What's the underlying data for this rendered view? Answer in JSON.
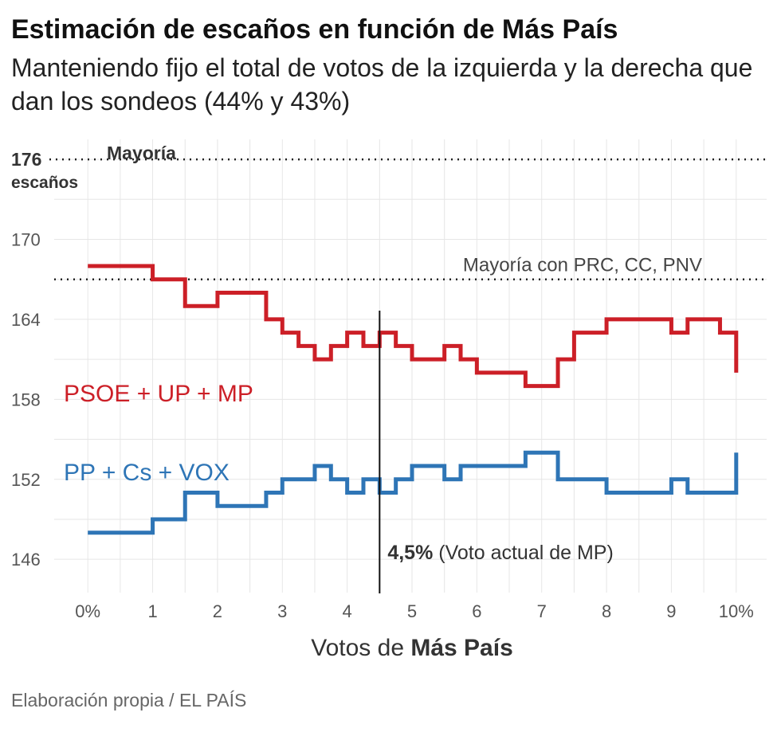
{
  "title": "Estimación de escaños en función de Más País",
  "subtitle": "Manteniendo fijo el total de votos de la izquierda y la derecha que dan los sondeos (44% y 43%)",
  "source": "Elaboración propia / EL PAÍS",
  "chart_data": {
    "type": "line",
    "step": true,
    "title": "Estimación de escaños en función de Más País",
    "xlabel": "Votos de Más País",
    "xlabel_parts": [
      "Votos de ",
      "Más País"
    ],
    "ylabel": "",
    "xlim": [
      -0.15,
      10.15
    ],
    "ylim": [
      143.5,
      177.5
    ],
    "x_ticks": [
      0,
      1,
      2,
      3,
      4,
      5,
      6,
      7,
      8,
      9,
      10
    ],
    "x_tick_labels": [
      "0%",
      "1",
      "2",
      "3",
      "4",
      "5",
      "6",
      "7",
      "8",
      "9",
      "10%"
    ],
    "y_ticks": [
      146,
      152,
      158,
      164,
      170
    ],
    "y_tick_labels": [
      "146",
      "152",
      "158",
      "164",
      "170"
    ],
    "grid": true,
    "reference_lines": [
      {
        "y": 176,
        "label_top": "Mayoría",
        "label_value": "176",
        "label_unit": "escaños",
        "style": "dotted"
      },
      {
        "y": 167,
        "label": "Mayoría con PRC, CC, PNV",
        "style": "dotted"
      }
    ],
    "vertical_marker": {
      "x": 4.5,
      "label_bold": "4,5%",
      "label_rest": " (Voto actual de MP)"
    },
    "series": [
      {
        "name": "PSOE + UP + MP",
        "color": "#cc1f27",
        "steps": [
          {
            "x": 0,
            "y": 168
          },
          {
            "x": 1,
            "y": 167
          },
          {
            "x": 1.5,
            "y": 165
          },
          {
            "x": 2,
            "y": 166
          },
          {
            "x": 2.75,
            "y": 164
          },
          {
            "x": 3,
            "y": 163
          },
          {
            "x": 3.25,
            "y": 162
          },
          {
            "x": 3.5,
            "y": 161
          },
          {
            "x": 3.75,
            "y": 162
          },
          {
            "x": 4,
            "y": 163
          },
          {
            "x": 4.25,
            "y": 162
          },
          {
            "x": 4.5,
            "y": 163
          },
          {
            "x": 4.75,
            "y": 162
          },
          {
            "x": 5,
            "y": 161
          },
          {
            "x": 5.5,
            "y": 162
          },
          {
            "x": 5.75,
            "y": 161
          },
          {
            "x": 6,
            "y": 160
          },
          {
            "x": 6.75,
            "y": 159
          },
          {
            "x": 7.25,
            "y": 161
          },
          {
            "x": 7.5,
            "y": 163
          },
          {
            "x": 8,
            "y": 164
          },
          {
            "x": 9,
            "y": 163
          },
          {
            "x": 9.25,
            "y": 164
          },
          {
            "x": 9.75,
            "y": 163
          }
        ],
        "end": {
          "x": 10,
          "y": 160
        }
      },
      {
        "name": "PP + Cs + VOX",
        "color": "#2e75b6",
        "steps": [
          {
            "x": 0,
            "y": 148
          },
          {
            "x": 1,
            "y": 149
          },
          {
            "x": 1.5,
            "y": 151
          },
          {
            "x": 2,
            "y": 150
          },
          {
            "x": 2.75,
            "y": 151
          },
          {
            "x": 3,
            "y": 152
          },
          {
            "x": 3.5,
            "y": 153
          },
          {
            "x": 3.75,
            "y": 152
          },
          {
            "x": 4,
            "y": 151
          },
          {
            "x": 4.25,
            "y": 152
          },
          {
            "x": 4.5,
            "y": 151
          },
          {
            "x": 4.75,
            "y": 152
          },
          {
            "x": 5,
            "y": 153
          },
          {
            "x": 5.5,
            "y": 152
          },
          {
            "x": 5.75,
            "y": 153
          },
          {
            "x": 6.75,
            "y": 154
          },
          {
            "x": 7.25,
            "y": 152
          },
          {
            "x": 8,
            "y": 151
          },
          {
            "x": 9,
            "y": 152
          },
          {
            "x": 9.25,
            "y": 151
          }
        ],
        "end": {
          "x": 10,
          "y": 154
        }
      }
    ]
  }
}
